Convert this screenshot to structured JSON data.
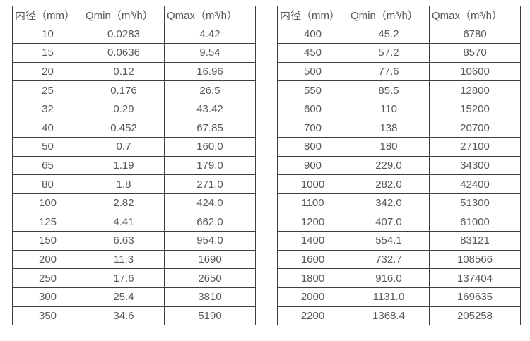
{
  "colors": {
    "background": "#ffffff",
    "border": "#3f3f3f",
    "text": "#595959"
  },
  "tables": [
    {
      "name": "flow-spec-table-small-diameters",
      "headers": [
        "内径（mm）",
        "Qmin（m³/h）",
        "Qmax（m³/h）"
      ],
      "rows": [
        [
          "10",
          "0.0283",
          "4.42"
        ],
        [
          "15",
          "0.0636",
          "9.54"
        ],
        [
          "20",
          "0.12",
          "16.96"
        ],
        [
          "25",
          "0.176",
          "26.5"
        ],
        [
          "32",
          "0.29",
          "43.42"
        ],
        [
          "40",
          "0.452",
          "67.85"
        ],
        [
          "50",
          "0.7",
          "160.0"
        ],
        [
          "65",
          "1.19",
          "179.0"
        ],
        [
          "80",
          "1.8",
          "271.0"
        ],
        [
          "100",
          "2.82",
          "424.0"
        ],
        [
          "125",
          "4.41",
          "662.0"
        ],
        [
          "150",
          "6.63",
          "954.0"
        ],
        [
          "200",
          "11.3",
          "1690"
        ],
        [
          "250",
          "17.6",
          "2650"
        ],
        [
          "300",
          "25.4",
          "3810"
        ],
        [
          "350",
          "34.6",
          "5190"
        ]
      ]
    },
    {
      "name": "flow-spec-table-large-diameters",
      "headers": [
        "内径（mm）",
        "Qmin（m³/h）",
        "Qmax（m³/h）"
      ],
      "rows": [
        [
          "400",
          "45.2",
          "6780"
        ],
        [
          "450",
          "57.2",
          "8570"
        ],
        [
          "500",
          "77.6",
          "10600"
        ],
        [
          "550",
          "85.5",
          "12800"
        ],
        [
          "600",
          "110",
          "15200"
        ],
        [
          "700",
          "138",
          "20700"
        ],
        [
          "800",
          "180",
          "27100"
        ],
        [
          "900",
          "229.0",
          "34300"
        ],
        [
          "1000",
          "282.0",
          "42400"
        ],
        [
          "1100",
          "342.0",
          "51300"
        ],
        [
          "1200",
          "407.0",
          "61000"
        ],
        [
          "1400",
          "554.1",
          "83121"
        ],
        [
          "1600",
          "732.7",
          "108566"
        ],
        [
          "1800",
          "916.0",
          "137404"
        ],
        [
          "2000",
          "1131.0",
          "169635"
        ],
        [
          "2200",
          "1368.4",
          "205258"
        ]
      ]
    }
  ]
}
